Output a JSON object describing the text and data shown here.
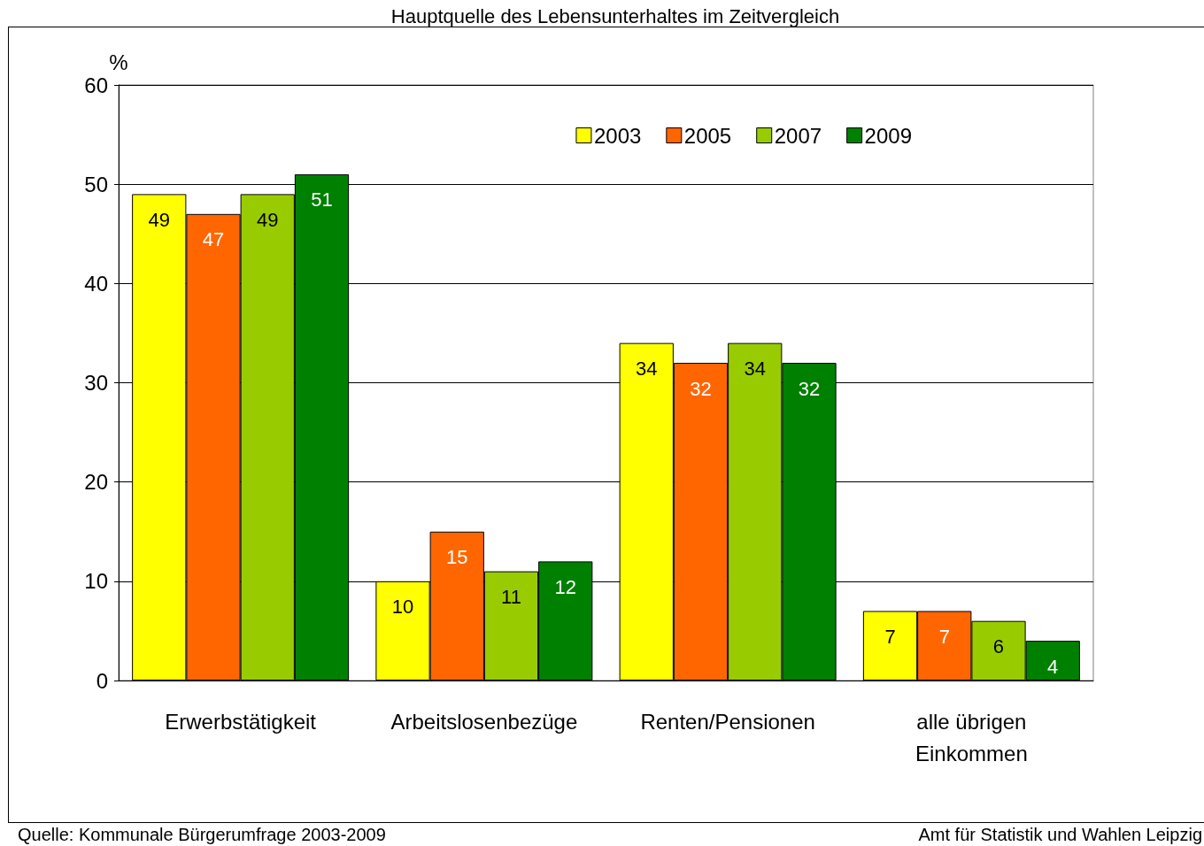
{
  "chart_data": {
    "type": "bar",
    "title": "Hauptquelle des Lebensunterhaltes im Zeitvergleich",
    "ylabel": "%",
    "categories": [
      "Erwerbstätigkeit",
      "Arbeitslosenbezüge",
      "Renten/Pensionen",
      "alle übrigen\nEinkommen"
    ],
    "series": [
      {
        "name": "2003",
        "color": "#ffff00",
        "values": [
          49,
          10,
          34,
          7
        ]
      },
      {
        "name": "2005",
        "color": "#ff6600",
        "values": [
          47,
          15,
          32,
          7
        ]
      },
      {
        "name": "2007",
        "color": "#99cc00",
        "values": [
          49,
          11,
          34,
          6
        ]
      },
      {
        "name": "2009",
        "color": "#008000",
        "values": [
          51,
          12,
          32,
          4
        ]
      }
    ],
    "ylim": [
      0,
      60
    ],
    "yticks": [
      0,
      10,
      20,
      30,
      40,
      50,
      60
    ],
    "grid": "y",
    "legend": "top right",
    "data_labels": true,
    "annotations": [
      "Quelle: Kommunale Bürgerumfrage 2003-2009",
      "Amt für Statistik und Wahlen Leipzig"
    ]
  }
}
